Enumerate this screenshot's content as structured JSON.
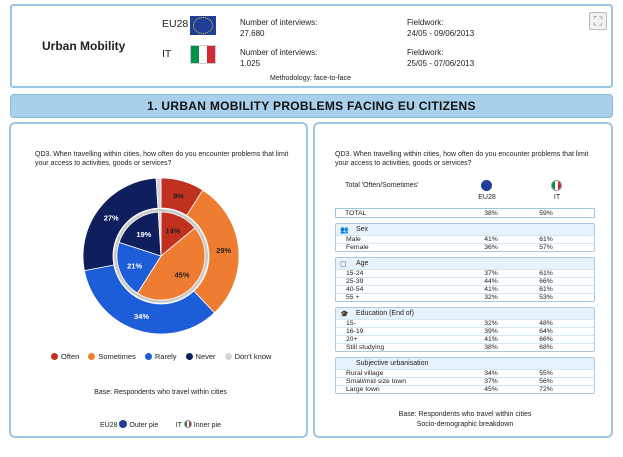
{
  "header": {
    "title": "Urban Mobility",
    "eu_code": "EU28",
    "it_code": "IT",
    "eu_interviews_label": "Number of interviews:",
    "eu_interviews_value": "27.680",
    "it_interviews_label": "Number of interviews:",
    "it_interviews_value": "1.025",
    "eu_fieldwork_label": "Fieldwork:",
    "eu_fieldwork_value": "24/05 - 09/06/2013",
    "it_fieldwork_label": "Fieldwork:",
    "it_fieldwork_value": "25/05 - 07/06/2013",
    "methodology": "Methodology: face-to-face"
  },
  "banner": "1. URBAN MOBILITY PROBLEMS FACING EU CITIZENS",
  "left": {
    "question": "QD3. When travelling within cities, how often do you encounter problems that limit your access to activities, goods or services?",
    "legend": [
      "Often",
      "Sometimes",
      "Rarely",
      "Never",
      "Don't know"
    ],
    "base": "Base: Respondents who travel within cities",
    "outer_label": "EU28",
    "outer_suffix": "Outer pie",
    "inner_label": "IT",
    "inner_suffix": "Inner pie"
  },
  "chart_data": {
    "type": "pie",
    "categories": [
      "Often",
      "Sometimes",
      "Rarely",
      "Never",
      "Don't know"
    ],
    "colors": [
      "#c0311f",
      "#ef7d31",
      "#1d5ed8",
      "#0f1f5e",
      "#d4d4d4"
    ],
    "series": [
      {
        "name": "EU28",
        "values": [
          9,
          29,
          34,
          27,
          1
        ]
      },
      {
        "name": "IT",
        "values": [
          14,
          45,
          21,
          19,
          1
        ]
      }
    ]
  },
  "right": {
    "question": "QD3. When travelling within cities, how often do you encounter problems that limit your access to activities, goods or services?",
    "total_header": "Total 'Often/Sometimes'",
    "col1": "EU28",
    "col2": "IT",
    "total_label": "TOTAL",
    "total_v1": "38%",
    "total_v2": "59%",
    "groups": [
      {
        "title": "Sex",
        "rows": [
          [
            "Male",
            "41%",
            "61%"
          ],
          [
            "Female",
            "36%",
            "57%"
          ]
        ]
      },
      {
        "title": "Age",
        "rows": [
          [
            "15-24",
            "37%",
            "61%"
          ],
          [
            "25-39",
            "44%",
            "66%"
          ],
          [
            "40-54",
            "41%",
            "61%"
          ],
          [
            "55 +",
            "32%",
            "53%"
          ]
        ]
      },
      {
        "title": "Education (End of)",
        "rows": [
          [
            "15-",
            "32%",
            "48%"
          ],
          [
            "16-19",
            "39%",
            "64%"
          ],
          [
            "20+",
            "41%",
            "66%"
          ],
          [
            "Still studying",
            "38%",
            "68%"
          ]
        ]
      },
      {
        "title": "Subjective urbanisation",
        "rows": [
          [
            "Rural village",
            "34%",
            "55%"
          ],
          [
            "Small/mid size town",
            "37%",
            "56%"
          ],
          [
            "Large town",
            "45%",
            "72%"
          ]
        ]
      }
    ],
    "base": "Base: Respondents who travel within cities",
    "breakdown": "Socio-demographic breakdown"
  }
}
